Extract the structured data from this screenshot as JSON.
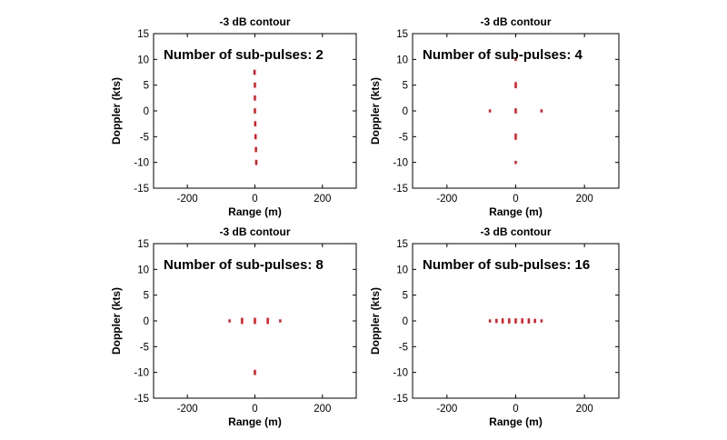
{
  "chart_data": [
    {
      "type": "scatter",
      "title": "-3 dB contour",
      "annotation": "Number of sub-pulses: 2",
      "xlabel": "Range (m)",
      "ylabel": "Doppler (kts)",
      "xlim": [
        -300,
        300
      ],
      "ylim": [
        -15,
        15
      ],
      "xticks": [
        -200,
        0,
        200
      ],
      "yticks": [
        -15,
        -10,
        -5,
        0,
        5,
        10,
        15
      ],
      "grid": false,
      "color": "#e8141c",
      "contours": [
        {
          "x": -1,
          "y": 7.5,
          "dx": 2,
          "dy": 1.0
        },
        {
          "x": 0,
          "y": 5.0,
          "dx": 2,
          "dy": 1.0
        },
        {
          "x": 0,
          "y": 2.5,
          "dx": 2,
          "dy": 1.0
        },
        {
          "x": 0,
          "y": 0,
          "dx": 2,
          "dy": 1.0
        },
        {
          "x": 1,
          "y": -2.5,
          "dx": 2,
          "dy": 1.0
        },
        {
          "x": 2,
          "y": -5.0,
          "dx": 2,
          "dy": 1.0
        },
        {
          "x": 3,
          "y": -7.5,
          "dx": 2,
          "dy": 1.0
        },
        {
          "x": 4,
          "y": -10.0,
          "dx": 2,
          "dy": 1.0
        }
      ]
    },
    {
      "type": "scatter",
      "title": "-3 dB contour",
      "annotation": "Number of sub-pulses: 4",
      "xlabel": "Range (m)",
      "ylabel": "Doppler (kts)",
      "xlim": [
        -300,
        300
      ],
      "ylim": [
        -15,
        15
      ],
      "xticks": [
        -200,
        0,
        200
      ],
      "yticks": [
        -15,
        -10,
        -5,
        0,
        5,
        10,
        15
      ],
      "grid": false,
      "color": "#e8141c",
      "contours": [
        {
          "x": 0,
          "y": 10,
          "dx": 2,
          "dy": 0.6
        },
        {
          "x": 0,
          "y": 5,
          "dx": 2,
          "dy": 1.2
        },
        {
          "x": -75,
          "y": 0,
          "dx": 2,
          "dy": 0.6
        },
        {
          "x": 0,
          "y": 0,
          "dx": 2,
          "dy": 1.0
        },
        {
          "x": 75,
          "y": 0,
          "dx": 2,
          "dy": 0.6
        },
        {
          "x": 0,
          "y": -5,
          "dx": 2,
          "dy": 1.2
        },
        {
          "x": 0,
          "y": -10,
          "dx": 2,
          "dy": 0.6
        }
      ]
    },
    {
      "type": "scatter",
      "title": "-3 dB contour",
      "annotation": "Number of sub-pulses: 8",
      "xlabel": "Range (m)",
      "ylabel": "Doppler (kts)",
      "xlim": [
        -300,
        300
      ],
      "ylim": [
        -15,
        15
      ],
      "xticks": [
        -200,
        0,
        200
      ],
      "yticks": [
        -15,
        -10,
        -5,
        0,
        5,
        10,
        15
      ],
      "grid": false,
      "color": "#e8141c",
      "contours": [
        {
          "x": -75,
          "y": 0,
          "dx": 2,
          "dy": 0.6
        },
        {
          "x": -38,
          "y": 0,
          "dx": 2,
          "dy": 1.2
        },
        {
          "x": 0,
          "y": 0,
          "dx": 2,
          "dy": 1.2
        },
        {
          "x": 38,
          "y": 0,
          "dx": 2,
          "dy": 1.2
        },
        {
          "x": 75,
          "y": 0,
          "dx": 2,
          "dy": 0.6
        },
        {
          "x": 0,
          "y": -10,
          "dx": 2,
          "dy": 1.0
        }
      ]
    },
    {
      "type": "scatter",
      "title": "-3 dB contour",
      "annotation": "Number of sub-pulses: 16",
      "xlabel": "Range (m)",
      "ylabel": "Doppler (kts)",
      "xlim": [
        -300,
        300
      ],
      "ylim": [
        -15,
        15
      ],
      "xticks": [
        -200,
        0,
        200
      ],
      "yticks": [
        -15,
        -10,
        -5,
        0,
        5,
        10,
        15
      ],
      "grid": false,
      "color": "#e8141c",
      "contours": [
        {
          "x": -75,
          "y": 0,
          "dx": 2,
          "dy": 0.6
        },
        {
          "x": -56,
          "y": 0,
          "dx": 2,
          "dy": 0.8
        },
        {
          "x": -38,
          "y": 0,
          "dx": 2,
          "dy": 1.0
        },
        {
          "x": -19,
          "y": 0,
          "dx": 2,
          "dy": 1.0
        },
        {
          "x": 0,
          "y": 0,
          "dx": 2,
          "dy": 1.0
        },
        {
          "x": 19,
          "y": 0,
          "dx": 2,
          "dy": 1.0
        },
        {
          "x": 38,
          "y": 0,
          "dx": 2,
          "dy": 1.0
        },
        {
          "x": 56,
          "y": 0,
          "dx": 2,
          "dy": 0.8
        },
        {
          "x": 75,
          "y": 0,
          "dx": 2,
          "dy": 0.6
        }
      ]
    }
  ]
}
